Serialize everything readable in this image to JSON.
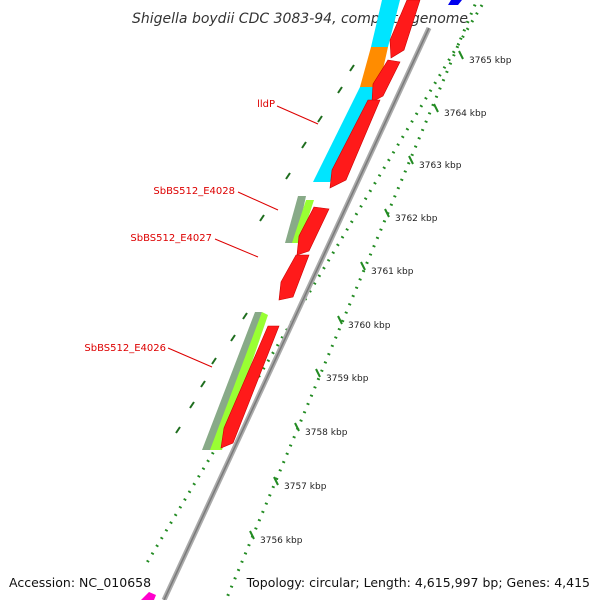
{
  "title": "Shigella boydii CDC 3083-94, complete genome",
  "accession": "Accession: NC_010658",
  "summary": "Topology: circular; Length: 4,615,997 bp; Genes: 4,415",
  "ticks": [
    {
      "label": "3765 kbp"
    },
    {
      "label": "3764 kbp"
    },
    {
      "label": "3763 kbp"
    },
    {
      "label": "3762 kbp"
    },
    {
      "label": "3761 kbp"
    },
    {
      "label": "3760 kbp"
    },
    {
      "label": "3759 kbp"
    },
    {
      "label": "3758 kbp"
    },
    {
      "label": "3757 kbp"
    },
    {
      "label": "3756 kbp"
    }
  ],
  "gene_labels": [
    {
      "name": "lldP"
    },
    {
      "name": "SbBS512_E4028"
    },
    {
      "name": "SbBS512_E4027"
    },
    {
      "name": "SbBS512_E4026"
    }
  ],
  "colors": {
    "cds": "#ff1a1a",
    "cds_edge": "#cc0000",
    "cyan": "#00e5ff",
    "orange": "#ff8c00",
    "lightgreen": "#99ff33",
    "sage": "#88aa88",
    "dotted": "#228b22",
    "backbone": "#999999",
    "label": "#dd0000",
    "blue": "#0000ee",
    "magenta": "#ff00cc"
  }
}
